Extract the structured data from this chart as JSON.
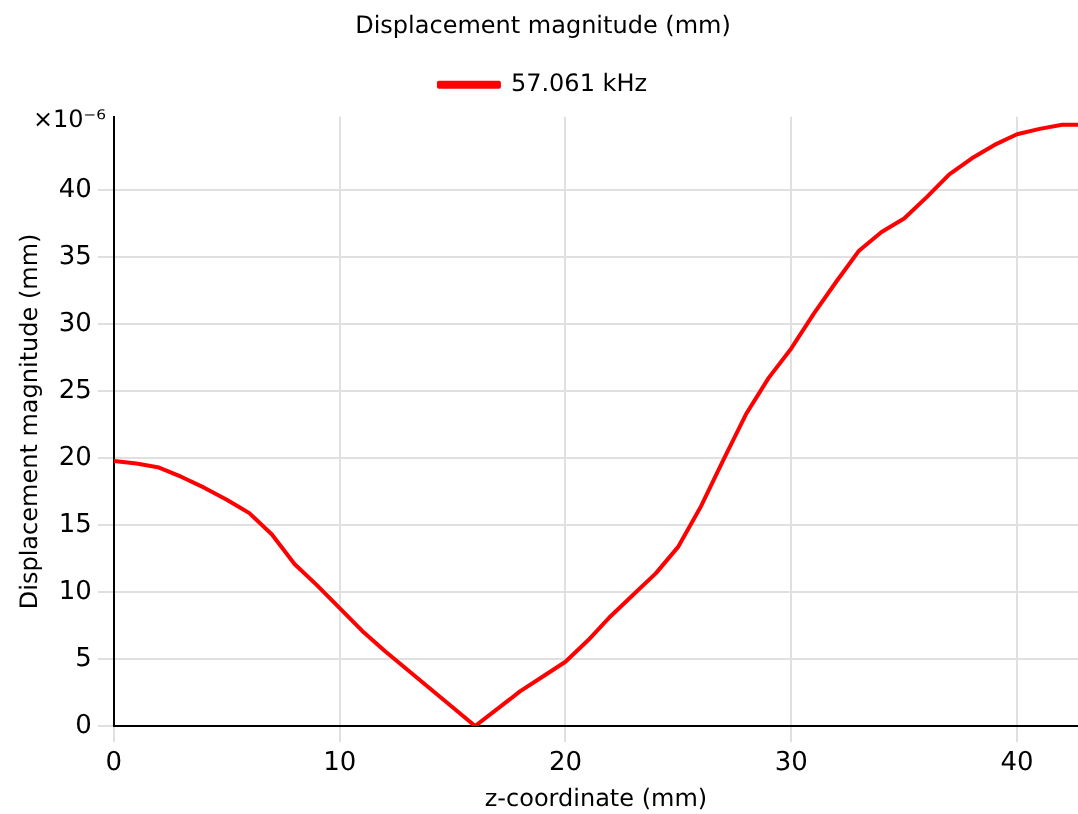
{
  "chart_data": {
    "type": "line",
    "title": "Displacement magnitude (mm)",
    "xlabel": "z-coordinate (mm)",
    "ylabel": "Displacement magnitude (mm)",
    "annotations": [
      "×10⁻⁶"
    ],
    "x": [
      0,
      1,
      2,
      3,
      4,
      5,
      6,
      7,
      8,
      9,
      10,
      11,
      12,
      13,
      14,
      15,
      16,
      17,
      18,
      19,
      20,
      21,
      22,
      23,
      24,
      25,
      26,
      27,
      28,
      29,
      30,
      31,
      32,
      33,
      34,
      35,
      36,
      37,
      38,
      39,
      40,
      41,
      42,
      42.7
    ],
    "series": [
      {
        "name": "57.061 kHz",
        "color": "#ff0000",
        "values": [
          19.8,
          19.6,
          19.3,
          18.6,
          17.8,
          16.9,
          15.9,
          14.3,
          12.1,
          10.5,
          8.8,
          7.1,
          5.6,
          4.2,
          2.8,
          1.4,
          0,
          1.3,
          2.6,
          3.7,
          4.8,
          6.4,
          8.2,
          9.8,
          11.4,
          13.4,
          16.4,
          19.9,
          23.3,
          26,
          28.2,
          30.8,
          33.2,
          35.5,
          36.9,
          37.9,
          39.5,
          41.2,
          42.4,
          43.4,
          44.2,
          44.6,
          44.9,
          44.9
        ]
      }
    ],
    "xlim": [
      0,
      42.7
    ],
    "ylim": [
      0,
      45.5
    ],
    "xticks": [
      0,
      10,
      20,
      30,
      40
    ],
    "yticks": [
      0,
      5,
      10,
      15,
      20,
      25,
      30,
      35,
      40
    ],
    "grid": true,
    "legend": "top",
    "marker": "none",
    "line_style": "solid"
  }
}
